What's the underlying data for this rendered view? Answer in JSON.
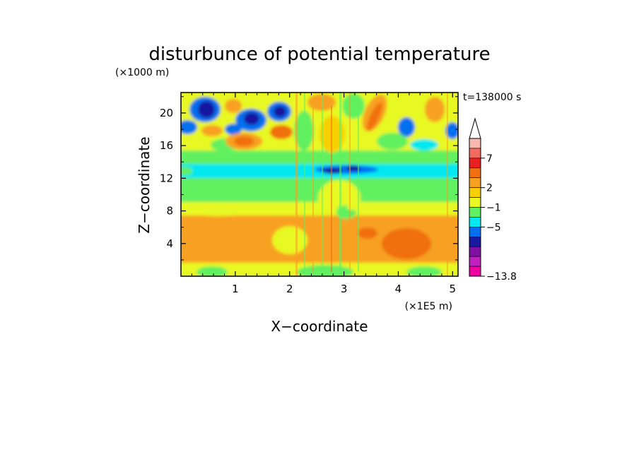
{
  "chart_data": {
    "type": "heatmap",
    "title": "disturbunce of potential temperature",
    "y_unit_label": "(×1000 m)",
    "x_unit_label": "(×1E5 m)",
    "xlabel": "X−coordinate",
    "ylabel": "Z−coordinate",
    "time_label": "t=138000 s",
    "xlim": [
      0,
      5.1
    ],
    "ylim": [
      0,
      22.5
    ],
    "x_ticks": [
      1,
      2,
      3,
      4,
      5
    ],
    "y_ticks": [
      4,
      8,
      12,
      16,
      20
    ],
    "colorbar": {
      "labels": [
        {
          "value": 7,
          "text": "7"
        },
        {
          "value": 2,
          "text": "2"
        },
        {
          "value": -1,
          "text": "−1"
        },
        {
          "value": -5,
          "text": "−5"
        },
        {
          "value": -13.8,
          "text": "−13.8"
        }
      ],
      "colors_top_to_bottom": [
        "#f8b8b0",
        "#f06a60",
        "#e82020",
        "#f07010",
        "#f8a020",
        "#f8d000",
        "#e8f820",
        "#60f060",
        "#00e8f0",
        "#0070f0",
        "#1818a0",
        "#8010a0",
        "#c020c0",
        "#f000a0"
      ],
      "overflow_triangle_top": true
    },
    "field_description_values": [
      {
        "region": "upper-left",
        "value": -5
      },
      {
        "region": "mid-band",
        "value": 0
      }
    ]
  }
}
